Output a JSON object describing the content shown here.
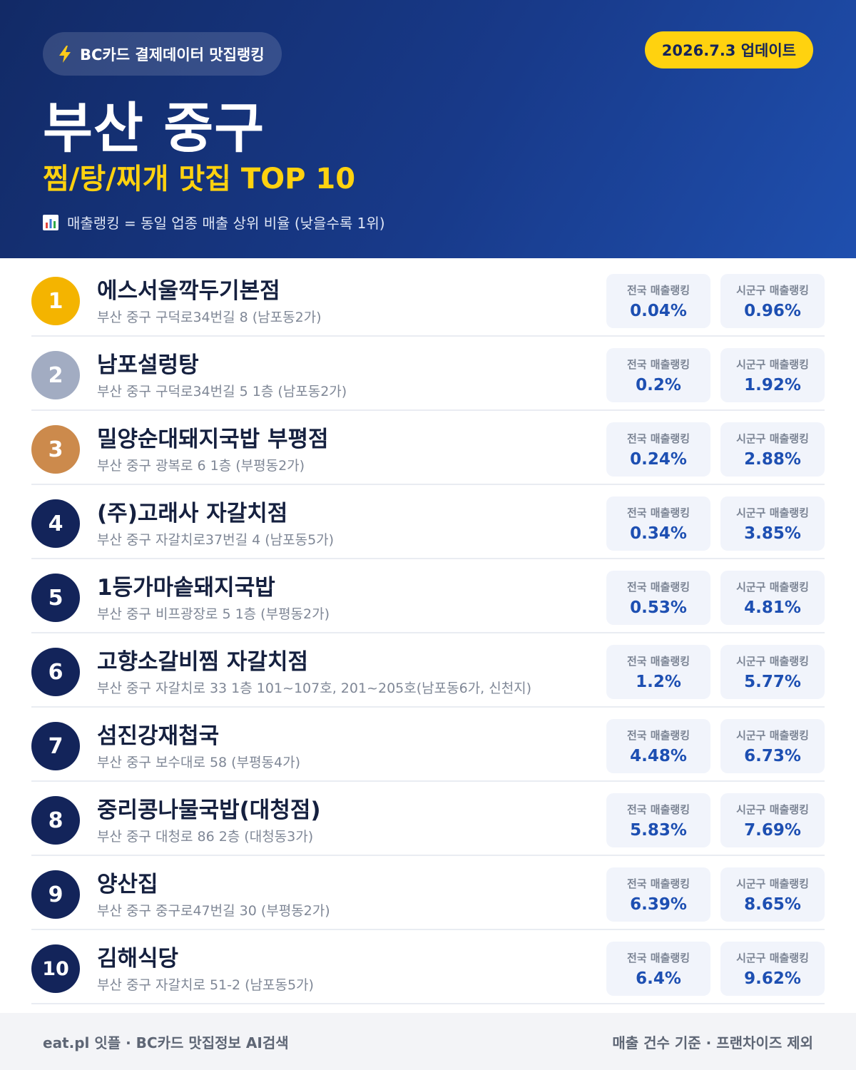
{
  "header": {
    "source_label": "BC카드 결제데이터 맛집랭킹",
    "update_label": "2026.7.3 업데이트",
    "region": "부산 중구",
    "category": "찜/탕/찌개 맛집 TOP 10",
    "legend": "매출랭킹 = 동일 업종 매출 상위 비율 (낮을수록 1위)",
    "source_icon": "lightning-bolt",
    "legend_icon": "bar-chart"
  },
  "labels": {
    "national": "전국 매출랭킹",
    "regional": "시군구 매출랭킹"
  },
  "colors": {
    "gold": "#f4b400",
    "silver": "#a2acc2",
    "bronze": "#cc8a4c",
    "default_rank": "#13245a",
    "accent_yellow": "#ffd20f",
    "value_blue": "#1d4fb2"
  },
  "restaurants": [
    {
      "rank": "1",
      "name": "에스서울깍두기본점",
      "address": "부산 중구 구덕로34번길 8 (남포동2가)",
      "national": "0.04%",
      "regional": "0.96%"
    },
    {
      "rank": "2",
      "name": "남포설렁탕",
      "address": "부산 중구 구덕로34번길 5 1층 (남포동2가)",
      "national": "0.2%",
      "regional": "1.92%"
    },
    {
      "rank": "3",
      "name": "밀양순대돼지국밥 부평점",
      "address": "부산 중구 광복로 6 1층 (부평동2가)",
      "national": "0.24%",
      "regional": "2.88%"
    },
    {
      "rank": "4",
      "name": "(주)고래사 자갈치점",
      "address": "부산 중구 자갈치로37번길 4 (남포동5가)",
      "national": "0.34%",
      "regional": "3.85%"
    },
    {
      "rank": "5",
      "name": "1등가마솥돼지국밥",
      "address": "부산 중구 비프광장로 5 1층 (부평동2가)",
      "national": "0.53%",
      "regional": "4.81%"
    },
    {
      "rank": "6",
      "name": "고향소갈비찜 자갈치점",
      "address": "부산 중구 자갈치로 33 1층 101~107호, 201~205호(남포동6가, 신천지)",
      "national": "1.2%",
      "regional": "5.77%"
    },
    {
      "rank": "7",
      "name": "섬진강재첩국",
      "address": "부산 중구 보수대로 58 (부평동4가)",
      "national": "4.48%",
      "regional": "6.73%"
    },
    {
      "rank": "8",
      "name": "중리콩나물국밥(대청점)",
      "address": "부산 중구 대청로 86 2층 (대청동3가)",
      "national": "5.83%",
      "regional": "7.69%"
    },
    {
      "rank": "9",
      "name": "양산집",
      "address": "부산 중구 중구로47번길 30 (부평동2가)",
      "national": "6.39%",
      "regional": "8.65%"
    },
    {
      "rank": "10",
      "name": "김해식당",
      "address": "부산 중구 자갈치로 51-2 (남포동5가)",
      "national": "6.4%",
      "regional": "9.62%"
    }
  ],
  "footer": {
    "left": "eat.pl 잇플 · BC카드 맛집정보 AI검색",
    "right": "매출 건수 기준 · 프랜차이즈 제외"
  }
}
